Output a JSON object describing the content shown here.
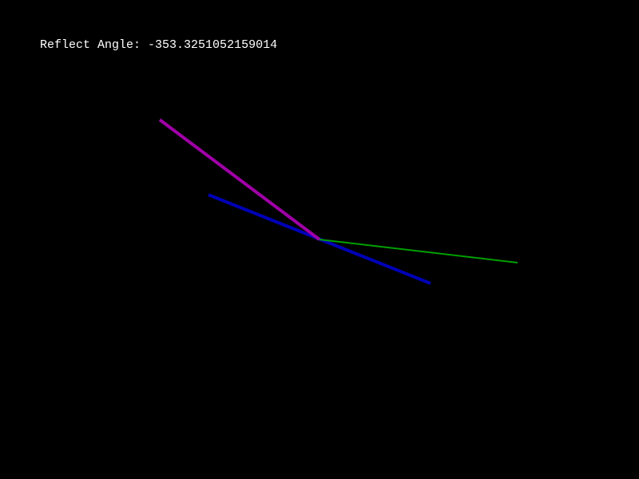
{
  "readout": {
    "label": "Reflect Angle:",
    "value": "-353.3251052159014"
  },
  "colors": {
    "background": "#000000",
    "text": "#ffffff",
    "incident_ray": "#a000a8",
    "surface_line": "#0000b8",
    "reflected_ray": "#00a000"
  }
}
